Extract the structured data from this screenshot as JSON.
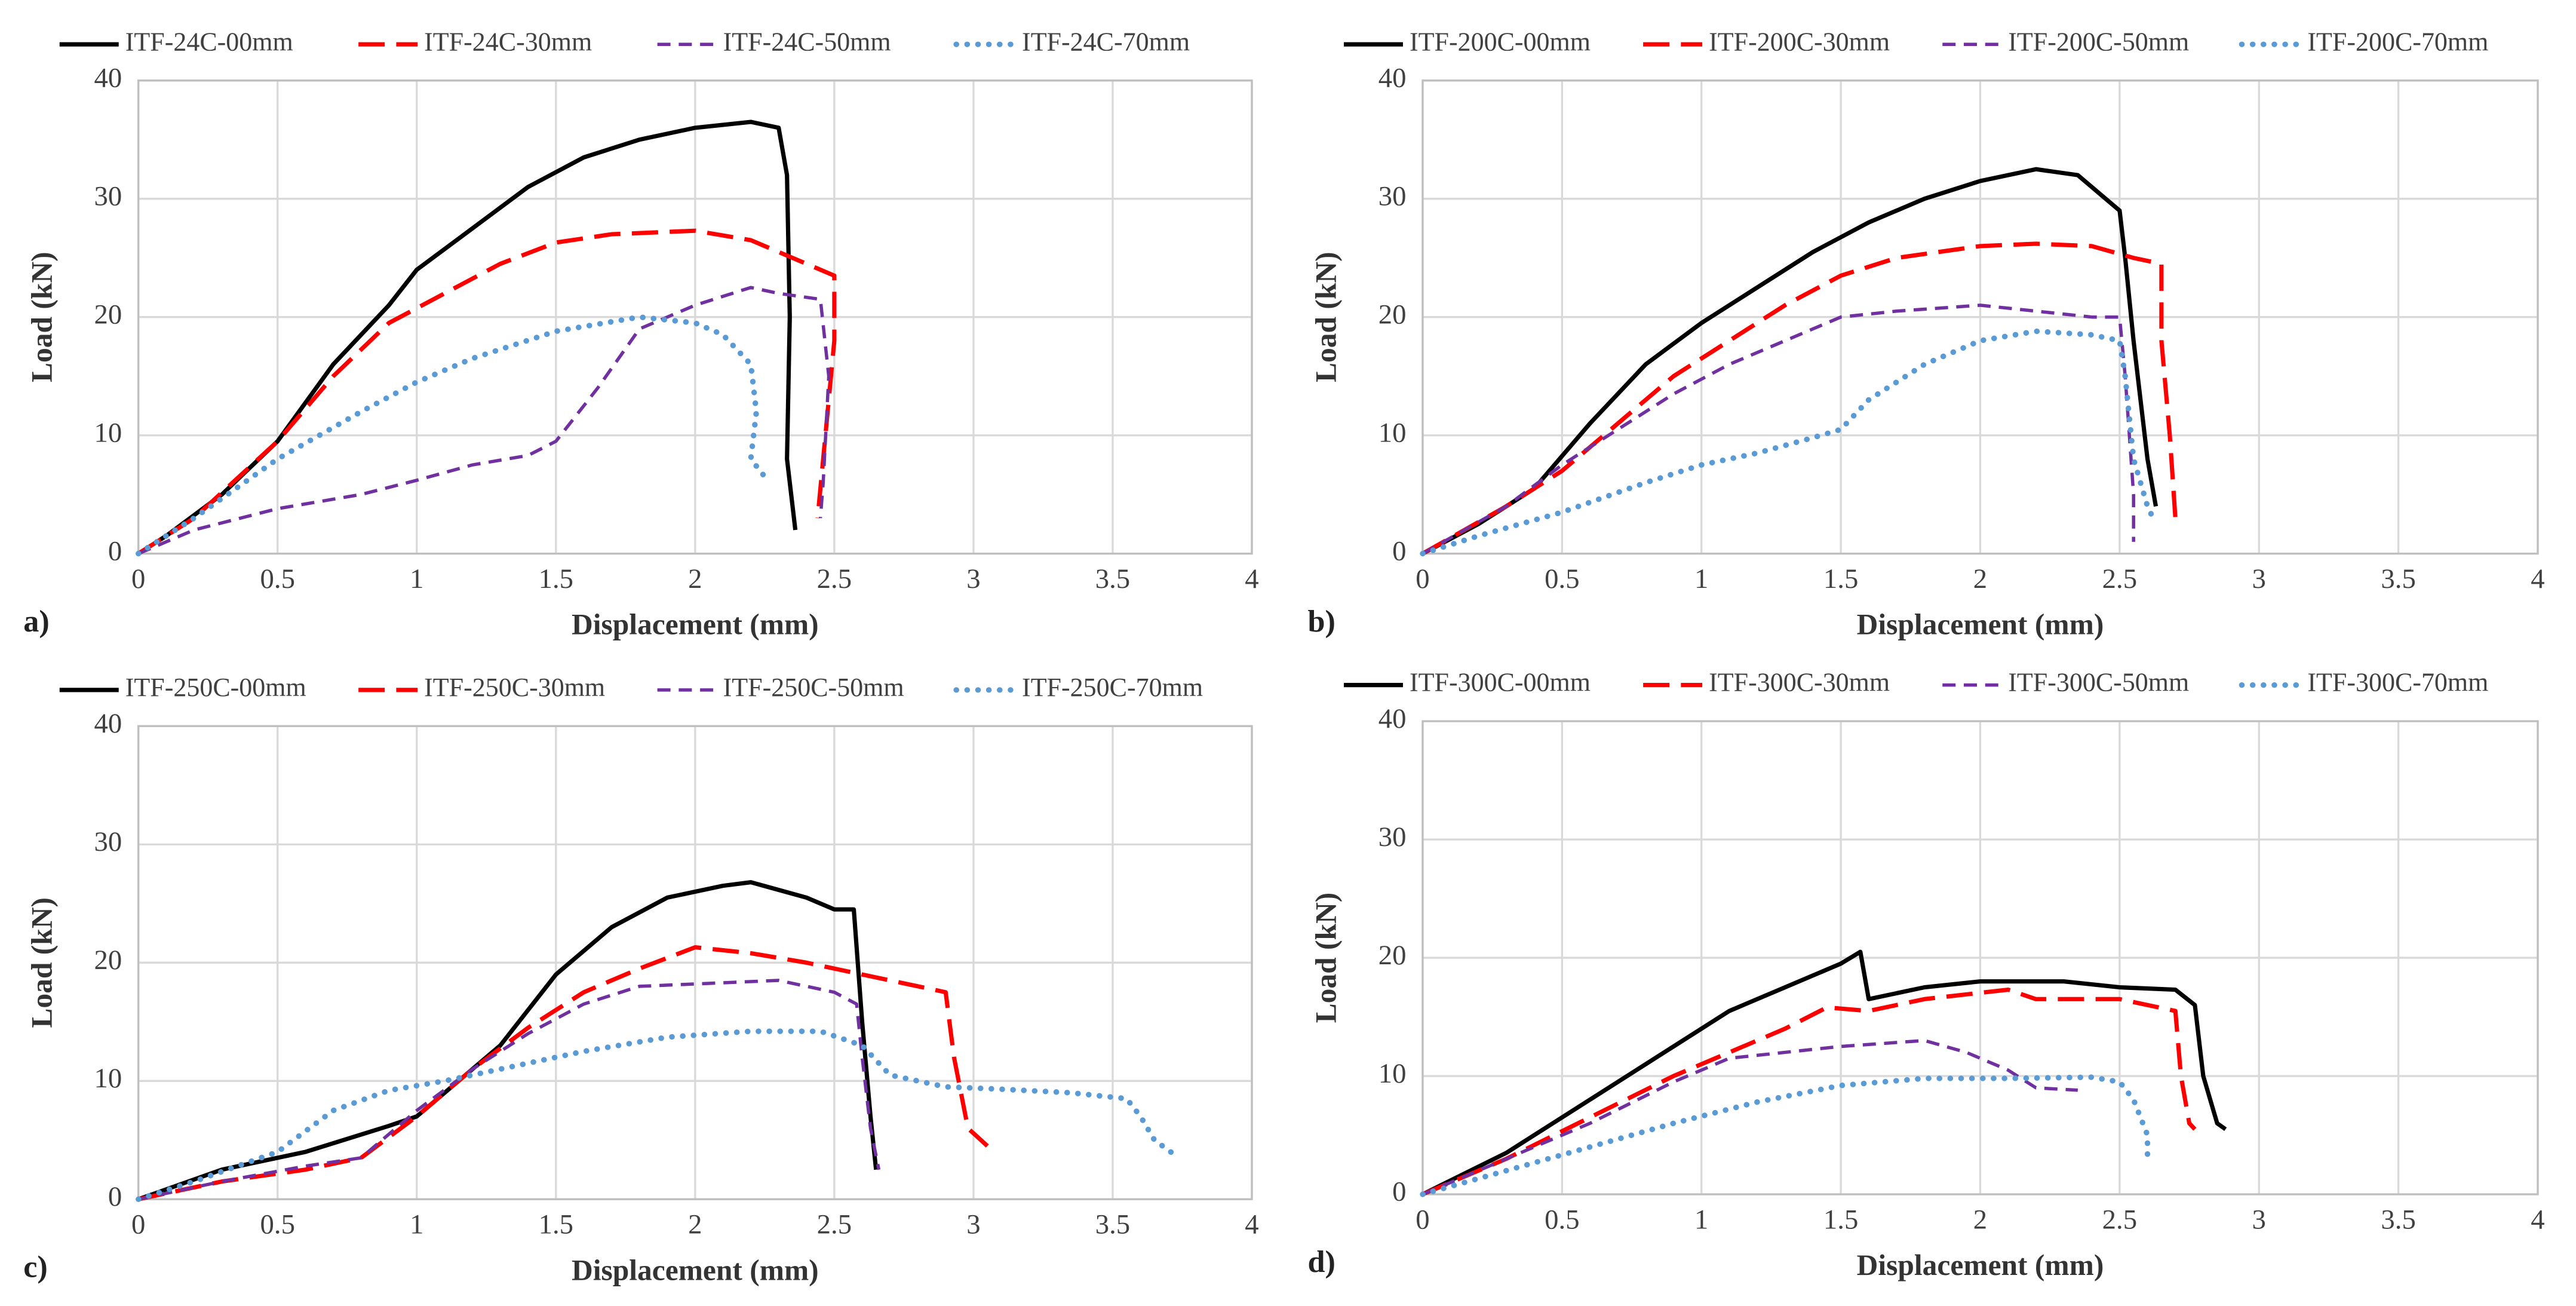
{
  "chart_data": [
    {
      "type": "line",
      "panel_label": "a)",
      "x_label": "Displacement (mm)",
      "y_label": "Load (kN)",
      "xlim": [
        0,
        4
      ],
      "xticks": [
        0,
        0.5,
        1,
        1.5,
        2,
        2.5,
        3,
        3.5,
        4
      ],
      "ylim": [
        0,
        40
      ],
      "yticks": [
        0,
        10,
        20,
        30,
        40
      ],
      "grid": true,
      "series": [
        {
          "name": "ITF-24C-00mm",
          "color": "#000000",
          "style": "solid",
          "x": [
            0,
            0.1,
            0.3,
            0.5,
            0.7,
            0.9,
            1,
            1.2,
            1.4,
            1.6,
            1.8,
            2,
            2.2,
            2.3,
            2.33,
            2.34,
            2.33,
            2.36
          ],
          "values": [
            0,
            1.5,
            5,
            9.5,
            16,
            21,
            24,
            27.5,
            31,
            33.5,
            35,
            36,
            36.5,
            36,
            32,
            20,
            8,
            2
          ]
        },
        {
          "name": "ITF-24C-30mm",
          "color": "#ff0000",
          "style": "long-dash",
          "x": [
            0,
            0.2,
            0.5,
            0.7,
            0.9,
            1.1,
            1.3,
            1.5,
            1.7,
            2,
            2.2,
            2.35,
            2.5,
            2.5,
            2.46,
            2.44
          ],
          "values": [
            0,
            3,
            9.5,
            15,
            19.5,
            22,
            24.5,
            26.3,
            27,
            27.3,
            26.5,
            25,
            23.5,
            18,
            8,
            3
          ]
        },
        {
          "name": "ITF-24C-50mm",
          "color": "#7030a0",
          "style": "short-dash",
          "x": [
            0,
            0.2,
            0.5,
            0.8,
            1,
            1.2,
            1.4,
            1.5,
            1.65,
            1.8,
            2,
            2.2,
            2.3,
            2.45,
            2.48,
            2.46,
            2.45
          ],
          "values": [
            0,
            2,
            3.8,
            5,
            6.2,
            7.5,
            8.3,
            9.5,
            14,
            19,
            21,
            22.5,
            22,
            21.5,
            15,
            6,
            3
          ]
        },
        {
          "name": "ITF-24C-70mm",
          "color": "#5b9bd5",
          "style": "dotted",
          "x": [
            0,
            0.2,
            0.5,
            0.8,
            1,
            1.2,
            1.5,
            1.8,
            2,
            2.1,
            2.2,
            2.22,
            2.2,
            2.25
          ],
          "values": [
            0,
            3,
            8,
            12,
            14.5,
            16.5,
            18.8,
            20,
            19.5,
            18.5,
            16,
            12,
            8,
            6.5
          ]
        }
      ]
    },
    {
      "type": "line",
      "panel_label": "b)",
      "x_label": "Displacement (mm)",
      "y_label": "Load (kN)",
      "xlim": [
        0,
        4
      ],
      "xticks": [
        0,
        0.5,
        1,
        1.5,
        2,
        2.5,
        3,
        3.5,
        4
      ],
      "ylim": [
        0,
        40
      ],
      "yticks": [
        0,
        10,
        20,
        30,
        40
      ],
      "grid": true,
      "series": [
        {
          "name": "ITF-200C-00mm",
          "color": "#000000",
          "style": "solid",
          "x": [
            0,
            0.2,
            0.4,
            0.6,
            0.8,
            1,
            1.2,
            1.4,
            1.6,
            1.8,
            2,
            2.2,
            2.35,
            2.45,
            2.5,
            2.52,
            2.55,
            2.6,
            2.63
          ],
          "values": [
            0,
            2.5,
            5.5,
            11,
            16,
            19.5,
            22.5,
            25.5,
            28,
            30,
            31.5,
            32.5,
            32,
            30,
            29,
            25,
            18,
            8,
            4
          ]
        },
        {
          "name": "ITF-200C-30mm",
          "color": "#ff0000",
          "style": "long-dash",
          "x": [
            0,
            0.3,
            0.5,
            0.7,
            0.9,
            1.1,
            1.3,
            1.5,
            1.7,
            2,
            2.2,
            2.4,
            2.55,
            2.65,
            2.65,
            2.68,
            2.7
          ],
          "values": [
            0,
            4,
            7,
            11,
            15,
            18,
            21,
            23.5,
            25,
            26,
            26.2,
            26,
            25,
            24.5,
            18,
            10,
            3
          ]
        },
        {
          "name": "ITF-200C-50mm",
          "color": "#7030a0",
          "style": "short-dash",
          "x": [
            0,
            0.3,
            0.5,
            0.7,
            0.9,
            1.1,
            1.3,
            1.5,
            1.7,
            2,
            2.2,
            2.4,
            2.5,
            2.52,
            2.55,
            2.55
          ],
          "values": [
            0,
            4,
            7.5,
            10.5,
            13.5,
            16,
            18,
            20,
            20.5,
            21,
            20.5,
            20,
            20,
            15,
            5,
            1
          ]
        },
        {
          "name": "ITF-200C-70mm",
          "color": "#5b9bd5",
          "style": "dotted",
          "x": [
            0,
            0.2,
            0.5,
            0.8,
            1,
            1.2,
            1.4,
            1.5,
            1.6,
            1.8,
            2,
            2.2,
            2.4,
            2.5,
            2.52,
            2.55,
            2.6,
            2.62
          ],
          "values": [
            0,
            1.5,
            3.5,
            6,
            7.5,
            8.5,
            9.8,
            10.5,
            13,
            16,
            18,
            18.8,
            18.5,
            18,
            15,
            8,
            4,
            3
          ]
        }
      ]
    },
    {
      "type": "line",
      "panel_label": "c)",
      "x_label": "Displacement (mm)",
      "y_label": "Load (kN)",
      "xlim": [
        0,
        4
      ],
      "xticks": [
        0,
        0.5,
        1,
        1.5,
        2,
        2.5,
        3,
        3.5,
        4
      ],
      "ylim": [
        0,
        40
      ],
      "yticks": [
        0,
        10,
        20,
        30,
        40
      ],
      "grid": true,
      "series": [
        {
          "name": "ITF-250C-00mm",
          "color": "#000000",
          "style": "solid",
          "x": [
            0,
            0.3,
            0.6,
            0.9,
            1,
            1.1,
            1.3,
            1.5,
            1.7,
            1.9,
            2.1,
            2.2,
            2.4,
            2.5,
            2.57,
            2.6,
            2.63,
            2.65
          ],
          "values": [
            0,
            2.5,
            4,
            6.2,
            7,
            9,
            13,
            19,
            23,
            25.5,
            26.5,
            26.8,
            25.5,
            24.5,
            24.5,
            15,
            7,
            2.5
          ]
        },
        {
          "name": "ITF-250C-30mm",
          "color": "#ff0000",
          "style": "long-dash",
          "x": [
            0,
            0.3,
            0.6,
            0.8,
            1,
            1.2,
            1.4,
            1.6,
            1.8,
            2,
            2.2,
            2.4,
            2.6,
            2.8,
            2.9,
            2.93,
            2.98,
            3.05
          ],
          "values": [
            0,
            1.5,
            2.5,
            3.5,
            7,
            11,
            14.5,
            17.5,
            19.5,
            21.3,
            20.8,
            20,
            19,
            18,
            17.5,
            12,
            6,
            4.5
          ]
        },
        {
          "name": "ITF-250C-50mm",
          "color": "#7030a0",
          "style": "short-dash",
          "x": [
            0,
            0.3,
            0.6,
            0.8,
            1,
            1.2,
            1.4,
            1.6,
            1.8,
            2,
            2.3,
            2.5,
            2.58,
            2.6,
            2.63,
            2.66
          ],
          "values": [
            0,
            1.5,
            2.8,
            3.5,
            7.5,
            11,
            14,
            16.5,
            18,
            18.2,
            18.5,
            17.5,
            16.5,
            12,
            6,
            2.5
          ]
        },
        {
          "name": "ITF-250C-70mm",
          "color": "#5b9bd5",
          "style": "dotted",
          "x": [
            0,
            0.2,
            0.5,
            0.7,
            0.9,
            1.1,
            1.3,
            1.6,
            1.9,
            2.2,
            2.45,
            2.6,
            2.7,
            2.9,
            3.1,
            3.35,
            3.55,
            3.6,
            3.65,
            3.72
          ],
          "values": [
            0,
            1.5,
            4,
            7.5,
            9.2,
            10,
            11,
            12.5,
            13.7,
            14.2,
            14.2,
            13,
            10.5,
            9.5,
            9.3,
            9,
            8.5,
            7,
            5,
            3.8
          ]
        }
      ]
    },
    {
      "type": "line",
      "panel_label": "d)",
      "x_label": "Displacement (mm)",
      "y_label": "Load (kN)",
      "xlim": [
        0,
        4
      ],
      "xticks": [
        0,
        0.5,
        1,
        1.5,
        2,
        2.5,
        3,
        3.5,
        4
      ],
      "ylim": [
        0,
        40
      ],
      "yticks": [
        0,
        10,
        20,
        30,
        40
      ],
      "grid": true,
      "series": [
        {
          "name": "ITF-300C-00mm",
          "color": "#000000",
          "style": "solid",
          "x": [
            0,
            0.3,
            0.6,
            0.9,
            1.1,
            1.3,
            1.5,
            1.57,
            1.6,
            1.8,
            2,
            2.3,
            2.5,
            2.7,
            2.77,
            2.8,
            2.85,
            2.88
          ],
          "values": [
            0,
            3.5,
            8,
            12.5,
            15.5,
            17.5,
            19.5,
            20.5,
            16.5,
            17.5,
            18,
            18,
            17.5,
            17.3,
            16,
            10,
            6,
            5.5
          ]
        },
        {
          "name": "ITF-300C-30mm",
          "color": "#ff0000",
          "style": "long-dash",
          "x": [
            0,
            0.3,
            0.6,
            0.9,
            1.1,
            1.3,
            1.45,
            1.6,
            1.8,
            2.1,
            2.2,
            2.5,
            2.7,
            2.72,
            2.75,
            2.77
          ],
          "values": [
            0,
            3,
            6.5,
            10,
            12,
            14,
            15.8,
            15.5,
            16.5,
            17.3,
            16.5,
            16.5,
            15.5,
            10,
            6,
            5.5
          ]
        },
        {
          "name": "ITF-300C-50mm",
          "color": "#7030a0",
          "style": "short-dash",
          "x": [
            0,
            0.3,
            0.6,
            0.9,
            1.1,
            1.3,
            1.5,
            1.8,
            1.95,
            2.1,
            2.2,
            2.35
          ],
          "values": [
            0,
            3,
            6,
            9.5,
            11.5,
            12,
            12.5,
            13,
            12,
            10.5,
            9,
            8.8
          ]
        },
        {
          "name": "ITF-300C-70mm",
          "color": "#5b9bd5",
          "style": "dotted",
          "x": [
            0,
            0.3,
            0.6,
            0.9,
            1.2,
            1.5,
            1.8,
            2.1,
            2.4,
            2.5,
            2.55,
            2.6,
            2.6
          ],
          "values": [
            0,
            2,
            4,
            6,
            7.8,
            9.2,
            9.8,
            9.8,
            9.9,
            9.5,
            8,
            5,
            3
          ]
        }
      ]
    }
  ]
}
